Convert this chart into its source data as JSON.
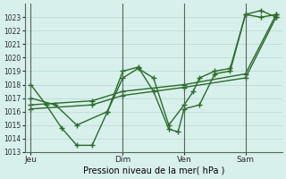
{
  "xlabel": "Pression niveau de la mer( hPa )",
  "bg_color": "#d8f0ec",
  "grid_color": "#b8d8d0",
  "line_color": "#2a6b2a",
  "marker": "+",
  "markersize": 5,
  "linewidth": 1.0,
  "ylim": [
    1013,
    1024
  ],
  "ytick_min": 1013,
  "ytick_max": 1023,
  "ytick_step": 1,
  "xtick_labels": [
    "Jeu",
    "Dim",
    "Ven",
    "Sam"
  ],
  "xtick_positions": [
    0,
    3,
    5,
    7
  ],
  "xlim": [
    -0.2,
    8.2
  ],
  "vline_positions": [
    0,
    3,
    5,
    7
  ],
  "vline_color": "#556655",
  "series": [
    {
      "x": [
        0,
        0.5,
        1.0,
        1.5,
        2.0,
        2.5,
        3.0,
        3.5,
        4.0,
        4.5,
        4.8,
        5.0,
        5.5,
        6.0,
        6.5,
        7.0,
        7.5,
        8.0
      ],
      "y": [
        1018,
        1016.5,
        1014.8,
        1013.5,
        1013.5,
        1016,
        1019,
        1019.3,
        1017.5,
        1014.7,
        1014.5,
        1016.2,
        1016.5,
        1018.8,
        1019.0,
        1023.2,
        1023.5,
        1023
      ]
    },
    {
      "x": [
        0,
        0.8,
        1.5,
        2.5,
        3.0,
        3.5,
        4.0,
        4.5,
        5.0,
        5.3,
        5.5,
        6.0,
        6.5,
        7.0,
        7.5,
        8.0
      ],
      "y": [
        1017,
        1016.5,
        1015.0,
        1016.0,
        1018.5,
        1019.2,
        1018.5,
        1015.0,
        1016.5,
        1017.5,
        1018.5,
        1019.0,
        1019.2,
        1023.2,
        1023.0,
        1023.2
      ]
    },
    {
      "x": [
        0,
        2.0,
        3.0,
        5.0,
        7.0,
        8.0
      ],
      "y": [
        1016.2,
        1016.5,
        1017.2,
        1017.8,
        1018.5,
        1023.0
      ]
    },
    {
      "x": [
        0,
        2.0,
        3.0,
        5.0,
        7.0,
        8.0
      ],
      "y": [
        1016.5,
        1016.8,
        1017.5,
        1018.0,
        1018.8,
        1023.2
      ]
    }
  ]
}
